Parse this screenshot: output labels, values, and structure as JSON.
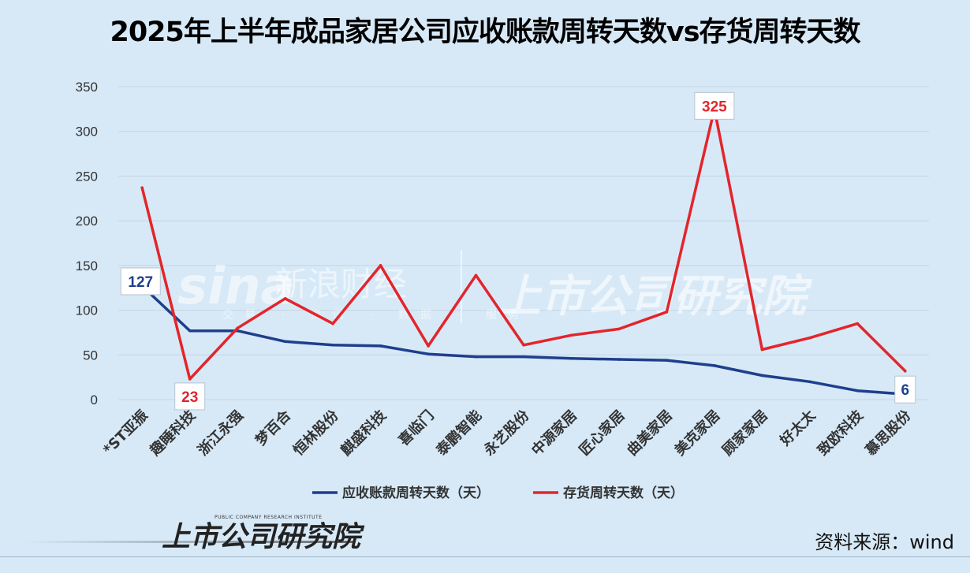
{
  "title": "2025年上半年成品家居公司应收账款周转天数vs存货周转天数",
  "source": "资料来源：wind",
  "watermarks": {
    "sina_logo": "sina",
    "sina_name": "新浪财经",
    "sina_sub": "交易 · 资讯 · 数据 · 服务",
    "institute": "上市公司研究院",
    "institute_en": "PUBLIC COMPANY RESEARCH INSTITUTE"
  },
  "colors": {
    "background": "#d7e9f7",
    "receivable": "#1f3f8c",
    "inventory": "#e3252b",
    "grid": "#c4d6e4"
  },
  "chart_data": {
    "type": "line",
    "title": "2025年上半年成品家居公司应收账款周转天数vs存货周转天数",
    "categories": [
      "*ST亚振",
      "趣睡科技",
      "浙江永强",
      "梦百合",
      "恒林股份",
      "麒盛科技",
      "喜临门",
      "泰鹏智能",
      "永艺股份",
      "中源家居",
      "匠心家居",
      "曲美家居",
      "美克家居",
      "顾家家居",
      "好太太",
      "致欧科技",
      "慕思股份"
    ],
    "series": [
      {
        "name": "应收账款周转天数（天）",
        "color": "#1f3f8c",
        "values": [
          127,
          77,
          77,
          65,
          61,
          60,
          51,
          48,
          48,
          46,
          45,
          44,
          38,
          27,
          20,
          10,
          6
        ]
      },
      {
        "name": "存货周转天数（天）",
        "color": "#e3252b",
        "values": [
          237,
          23,
          80,
          113,
          85,
          150,
          60,
          139,
          61,
          72,
          79,
          98,
          325,
          56,
          69,
          85,
          32
        ]
      }
    ],
    "ylim": [
      0,
      350
    ],
    "yticks": [
      0,
      50,
      100,
      150,
      200,
      250,
      300,
      350
    ],
    "xlabel": "",
    "ylabel": "",
    "grid": true,
    "legend_position": "bottom",
    "callouts": [
      {
        "series": 0,
        "index": 0,
        "text": "127"
      },
      {
        "series": 1,
        "index": 1,
        "text": "23"
      },
      {
        "series": 1,
        "index": 12,
        "text": "325"
      },
      {
        "series": 0,
        "index": 16,
        "text": "6"
      }
    ]
  }
}
